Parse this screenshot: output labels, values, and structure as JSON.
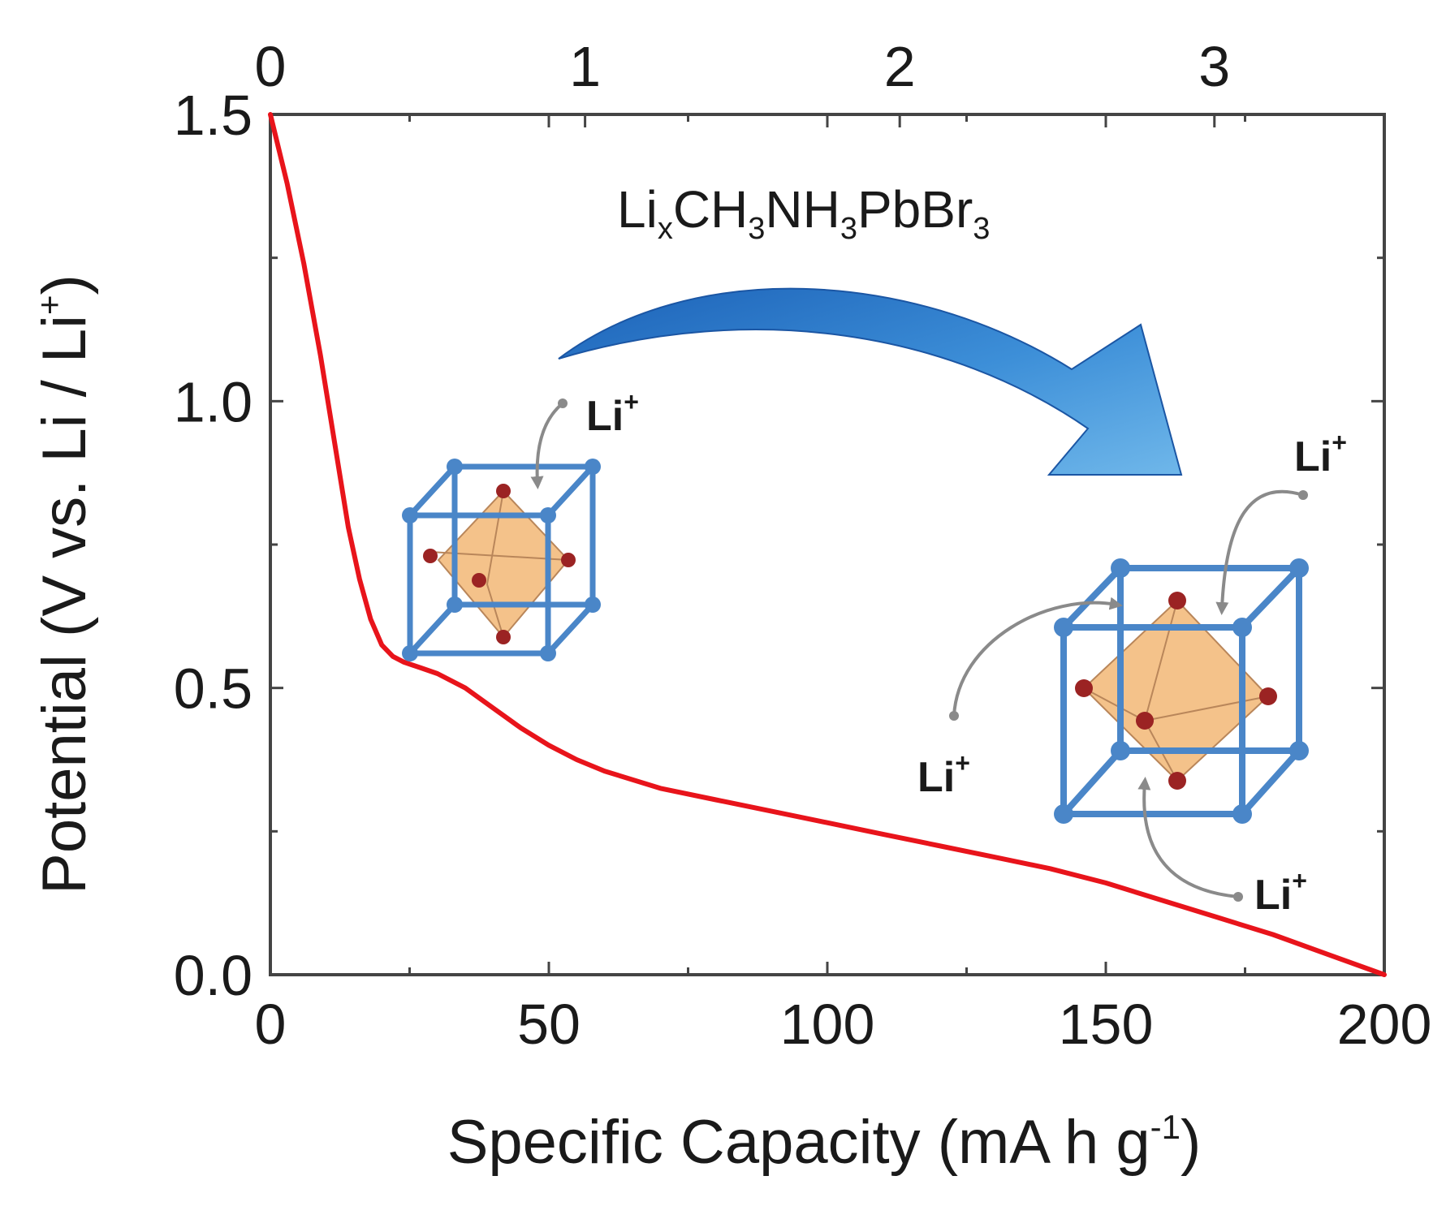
{
  "chart_data": {
    "type": "line",
    "title": "",
    "xlabel": "Specific Capacity (mA h g",
    "xlabel_sup": "-1",
    "xlabel_close": ")",
    "ylabel": "Potential (V vs. Li / Li",
    "ylabel_sup": "+",
    "ylabel_close": ")",
    "xlim": [
      0,
      200
    ],
    "ylim": [
      0,
      1.5
    ],
    "x_ticks": [
      0,
      50,
      100,
      150,
      200
    ],
    "x_tick_labels": [
      "0",
      "50",
      "100",
      "150",
      "200"
    ],
    "y_ticks": [
      0,
      0.5,
      1.0,
      1.5
    ],
    "y_tick_labels": [
      "0.0",
      "0.5",
      "1.0",
      "1.5"
    ],
    "top_axis": {
      "ticks_x_per_unit": 56.5,
      "ticks": [
        0,
        1,
        2,
        3
      ],
      "tick_labels": [
        "0",
        "1",
        "2",
        "3"
      ]
    },
    "grid": false,
    "legend": "none",
    "series": [
      {
        "color": "#e8141b",
        "x": [
          0,
          3,
          6,
          9,
          12,
          14,
          16,
          18,
          20,
          22,
          24,
          27,
          30,
          35,
          40,
          45,
          50,
          55,
          60,
          70,
          80,
          90,
          100,
          110,
          120,
          130,
          140,
          150,
          160,
          170,
          180,
          190,
          200
        ],
        "y": [
          1.5,
          1.38,
          1.24,
          1.08,
          0.9,
          0.78,
          0.69,
          0.62,
          0.575,
          0.555,
          0.545,
          0.535,
          0.525,
          0.5,
          0.465,
          0.43,
          0.4,
          0.375,
          0.355,
          0.325,
          0.305,
          0.285,
          0.265,
          0.245,
          0.225,
          0.205,
          0.185,
          0.16,
          0.13,
          0.1,
          0.07,
          0.035,
          0.0
        ]
      }
    ],
    "annotations": {
      "formula": {
        "base": [
          "Li",
          "CH",
          "NH",
          "PbBr"
        ],
        "subs": [
          "x",
          "3",
          "3",
          "3"
        ]
      },
      "ion_label": "Li",
      "ion_charge": "+"
    }
  }
}
